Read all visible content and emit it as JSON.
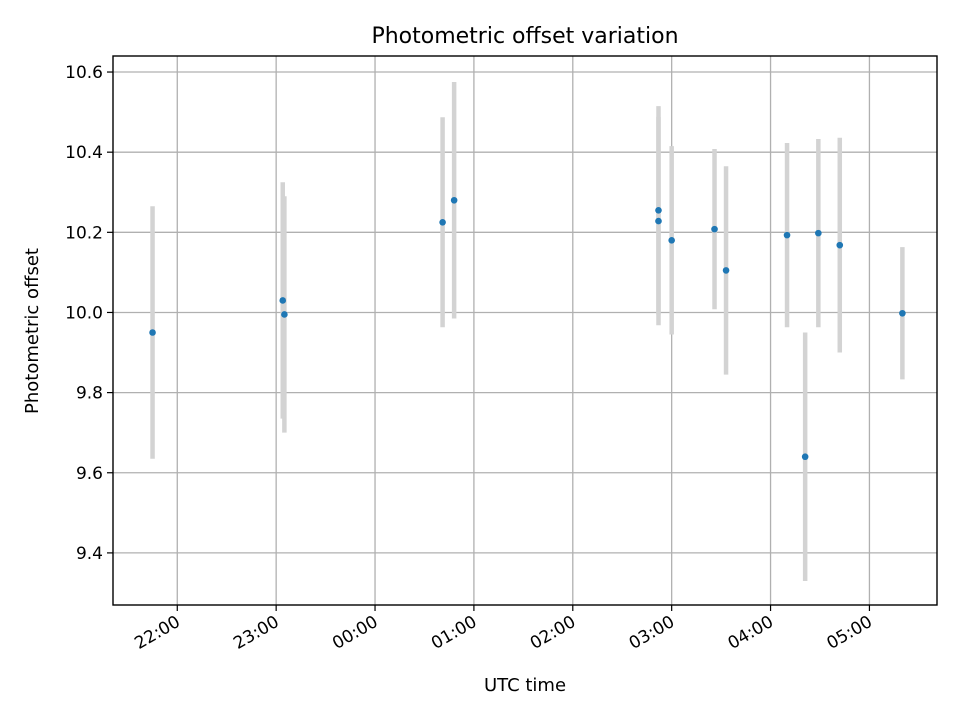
{
  "chart_data": {
    "type": "scatter",
    "title": "Photometric offset variation",
    "xlabel": "UTC time",
    "ylabel": "Photometric offset",
    "x_axis_kind": "time-of-day, spans midnight",
    "xlim": [
      "21:21",
      "05:41"
    ],
    "ylim": [
      9.27,
      10.64
    ],
    "grid": true,
    "xticks": [
      "22:00",
      "23:00",
      "00:00",
      "01:00",
      "02:00",
      "03:00",
      "04:00",
      "05:00"
    ],
    "yticks": [
      "9.4",
      "9.6",
      "9.8",
      "10.0",
      "10.2",
      "10.4",
      "10.6"
    ],
    "colors": {
      "point": "#1f77b4",
      "errorbar": "#d3d3d3",
      "grid": "#b0b0b0"
    },
    "series": [
      {
        "points": [
          {
            "x": "21:45",
            "y": 9.95,
            "yerr": 0.315
          },
          {
            "x": "23:04",
            "y": 10.03,
            "yerr": 0.295
          },
          {
            "x": "23:05",
            "y": 9.995,
            "yerr": 0.295
          },
          {
            "x": "00:41",
            "y": 10.225,
            "yerr": 0.262
          },
          {
            "x": "00:48",
            "y": 10.28,
            "yerr": 0.295
          },
          {
            "x": "02:52",
            "y": 10.255,
            "yerr": 0.26
          },
          {
            "x": "02:52",
            "y": 10.228,
            "yerr": 0.26
          },
          {
            "x": "03:00",
            "y": 10.18,
            "yerr": 0.235
          },
          {
            "x": "03:26",
            "y": 10.208,
            "yerr": 0.2
          },
          {
            "x": "03:33",
            "y": 10.105,
            "yerr": 0.26
          },
          {
            "x": "04:10",
            "y": 10.193,
            "yerr": 0.23
          },
          {
            "x": "04:21",
            "y": 9.64,
            "yerr": 0.31
          },
          {
            "x": "04:29",
            "y": 10.198,
            "yerr": 0.235
          },
          {
            "x": "04:42",
            "y": 10.168,
            "yerr": 0.268
          },
          {
            "x": "05:20",
            "y": 9.998,
            "yerr": 0.165
          }
        ]
      }
    ]
  }
}
